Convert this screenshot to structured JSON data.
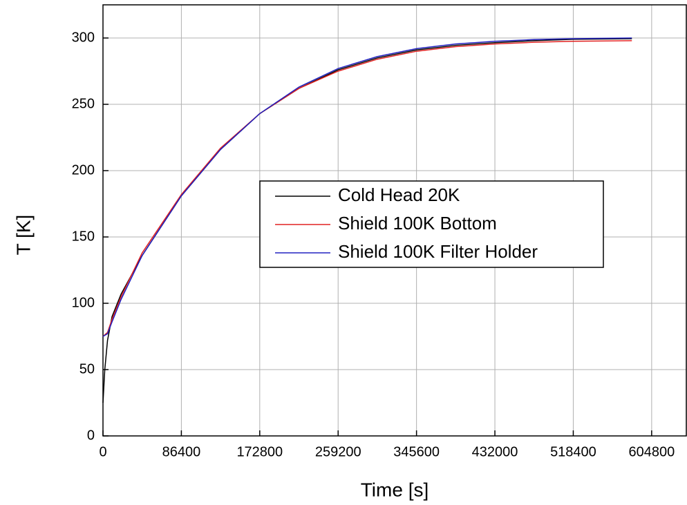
{
  "chart_data": {
    "type": "line",
    "x_label": "Time [s]",
    "y_label": "T [K]",
    "xlim": [
      0,
      643000
    ],
    "ylim": [
      0,
      325
    ],
    "xticks": [
      0,
      86400,
      172800,
      259200,
      345600,
      432000,
      518400,
      604800
    ],
    "yticks": [
      0,
      50,
      100,
      150,
      200,
      250,
      300
    ],
    "grid": true,
    "legend": "center",
    "series": [
      {
        "name": "Cold Head 20K",
        "color": "#000000",
        "x": [
          0,
          2000,
          5000,
          10000,
          20000,
          43200,
          86400,
          129600,
          172800,
          216000,
          259200,
          302400,
          345600,
          388800,
          432000,
          475200,
          518400,
          583000
        ],
        "values": [
          25,
          50,
          72,
          90,
          107,
          136,
          181,
          216,
          243,
          262,
          276,
          285,
          291,
          294.5,
          296.5,
          298,
          299,
          299.5
        ]
      },
      {
        "name": "Shield 100K Bottom",
        "color": "#e02020",
        "x": [
          0,
          5000,
          10000,
          20000,
          43200,
          86400,
          129600,
          172800,
          216000,
          259200,
          302400,
          345600,
          388800,
          432000,
          475200,
          518400,
          583000
        ],
        "values": [
          75,
          78,
          88,
          105,
          138,
          182,
          217,
          243,
          262,
          275,
          284,
          290,
          293.5,
          295.5,
          296.8,
          297.5,
          298
        ]
      },
      {
        "name": "Shield 100K Filter Holder",
        "color": "#2020c0",
        "x": [
          0,
          5000,
          10000,
          20000,
          43200,
          86400,
          129600,
          172800,
          216000,
          259200,
          302400,
          345600,
          388800,
          432000,
          475200,
          518400,
          583000
        ],
        "values": [
          75,
          77,
          86,
          103,
          136,
          181,
          216,
          243,
          263,
          277,
          286,
          292,
          295.5,
          297.5,
          298.8,
          299.5,
          300
        ]
      }
    ]
  }
}
